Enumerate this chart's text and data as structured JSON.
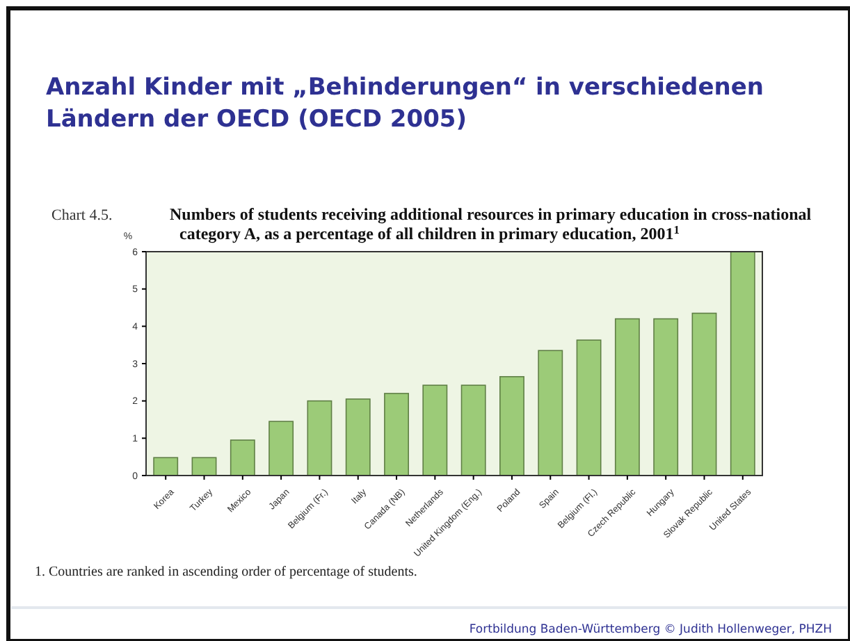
{
  "chart_data": {
    "type": "bar",
    "title": "Anzahl Kinder mit „Behinderungen“ in verschiedenen Ländern der OECD (OECD 2005)",
    "subtitle": "Numbers of students receiving additional resources in primary education in cross-national category A, as a percentage of all children in primary education, 2001$^{1}$",
    "ylabel": "%",
    "categories": [
      "Korea",
      "Turkey",
      "Mexico",
      "Japan",
      "Belgium (Fr.)",
      "Italy",
      "Canada (NB)",
      "Netherlands",
      "United Kingdom (Eng.)",
      "Poland",
      "Spain",
      "Belgium (Fl.)",
      "Czech Republic",
      "Hungary",
      "Slovak Republic",
      "United States"
    ],
    "values": [
      0.48,
      0.48,
      0.95,
      1.45,
      2.0,
      2.05,
      2.2,
      2.42,
      2.42,
      2.65,
      3.35,
      3.63,
      4.2,
      4.2,
      4.35,
      6.0
    ],
    "color": "#9ccb78",
    "ylim": [
      0,
      6
    ],
    "yticks": [
      0,
      1,
      2,
      3,
      4,
      5,
      6
    ],
    "grid": false,
    "annotations": [
      "Chart 4.5.",
      "1. Countries are ranked in ascending order of percentage of students.",
      "Fortbildung Baden-Württemberg © Judith Hollenweger, PHZH"
    ]
  }
}
